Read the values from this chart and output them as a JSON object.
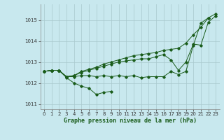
{
  "xlabel": "Graphe pression niveau de la mer (hPa)",
  "bg_color": "#c8e8ee",
  "grid_color": "#a8c8cc",
  "line_color": "#1a5c1a",
  "ylim": [
    1010.75,
    1015.75
  ],
  "xlim": [
    -0.5,
    23.5
  ],
  "yticks": [
    1011,
    1012,
    1013,
    1014,
    1015
  ],
  "xticks": [
    0,
    1,
    2,
    3,
    4,
    5,
    6,
    7,
    8,
    9,
    10,
    11,
    12,
    13,
    14,
    15,
    16,
    17,
    18,
    19,
    20,
    21,
    22,
    23
  ],
  "series": [
    {
      "x": [
        0,
        1,
        2,
        3,
        4,
        5,
        6,
        7,
        8,
        9
      ],
      "y": [
        1012.55,
        1012.6,
        1012.6,
        1012.25,
        1012.0,
        1011.85,
        1011.75,
        1011.45,
        1011.55,
        1011.6
      ]
    },
    {
      "x": [
        0,
        1,
        2,
        3,
        4,
        5,
        6,
        7,
        8,
        9,
        10,
        11,
        12,
        13,
        14,
        15,
        16,
        17,
        18,
        19,
        20,
        21,
        22
      ],
      "y": [
        1012.55,
        1012.6,
        1012.6,
        1012.3,
        1012.3,
        1012.35,
        1012.35,
        1012.3,
        1012.35,
        1012.3,
        1012.35,
        1012.3,
        1012.35,
        1012.25,
        1012.3,
        1012.3,
        1012.3,
        1012.55,
        1012.4,
        1012.55,
        1013.8,
        1014.85,
        1015.1
      ]
    },
    {
      "x": [
        0,
        1,
        2,
        3,
        4,
        5,
        6,
        7,
        8,
        9,
        10,
        11,
        12,
        13,
        14,
        15,
        16,
        17,
        18,
        19,
        20,
        21,
        22,
        23
      ],
      "y": [
        1012.55,
        1012.6,
        1012.6,
        1012.3,
        1012.35,
        1012.5,
        1012.6,
        1012.7,
        1012.8,
        1012.9,
        1013.0,
        1013.05,
        1013.1,
        1013.15,
        1013.15,
        1013.25,
        1013.35,
        1013.1,
        1012.6,
        1013.0,
        1013.85,
        1013.8,
        1014.9,
        1015.2
      ]
    },
    {
      "x": [
        0,
        1,
        2,
        3,
        4,
        5,
        6,
        7,
        8,
        9,
        10,
        11,
        12,
        13,
        14,
        15,
        16,
        17,
        18,
        19,
        20,
        21,
        22,
        23
      ],
      "y": [
        1012.55,
        1012.6,
        1012.6,
        1012.3,
        1012.35,
        1012.55,
        1012.65,
        1012.75,
        1012.9,
        1013.0,
        1013.1,
        1013.2,
        1013.3,
        1013.35,
        1013.4,
        1013.45,
        1013.55,
        1013.6,
        1013.65,
        1013.9,
        1014.3,
        1014.65,
        1015.1,
        1015.3
      ]
    }
  ]
}
